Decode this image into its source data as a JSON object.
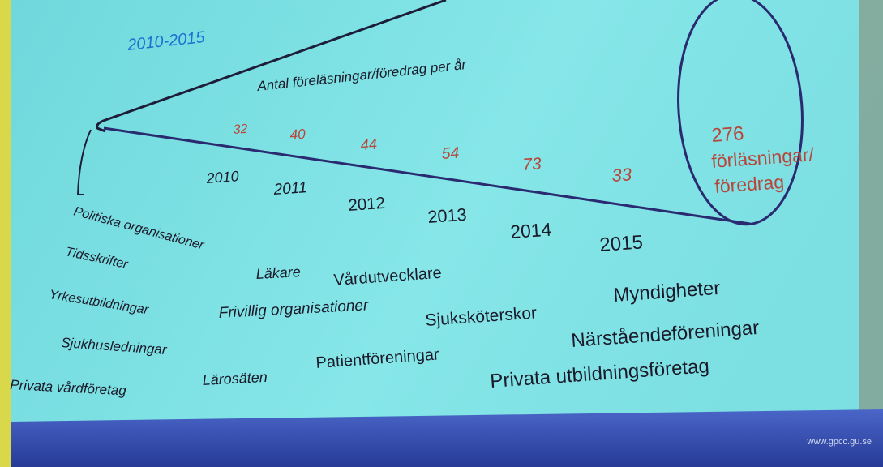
{
  "period": "2010-2015",
  "heading": "Antal föreläsningar/föredrag per år",
  "years": [
    {
      "year": 2010,
      "count": 32
    },
    {
      "year": 2011,
      "count": 40
    },
    {
      "year": 2012,
      "count": 44
    },
    {
      "year": 2013,
      "count": 54
    },
    {
      "year": 2014,
      "count": 73
    },
    {
      "year": 2015,
      "count": 33
    }
  ],
  "total": {
    "number": 276,
    "lines": [
      "förläsningar/",
      "föredrag"
    ]
  },
  "organizations": [
    "Politiska organisationer",
    "Tidsskrifter",
    "Yrkesutbildningar",
    "Sjukhusledningar",
    "Privata vårdföretag",
    "Läkare",
    "Vårdutvecklare",
    "Frivillig organisationer",
    "Sjuksköterskor",
    "Myndigheter",
    "Närståendeföreningar",
    "Patientföreningar",
    "Lärosäten",
    "Privata utbildningsföretag"
  ],
  "footer": "www.gpcc.gu.se"
}
